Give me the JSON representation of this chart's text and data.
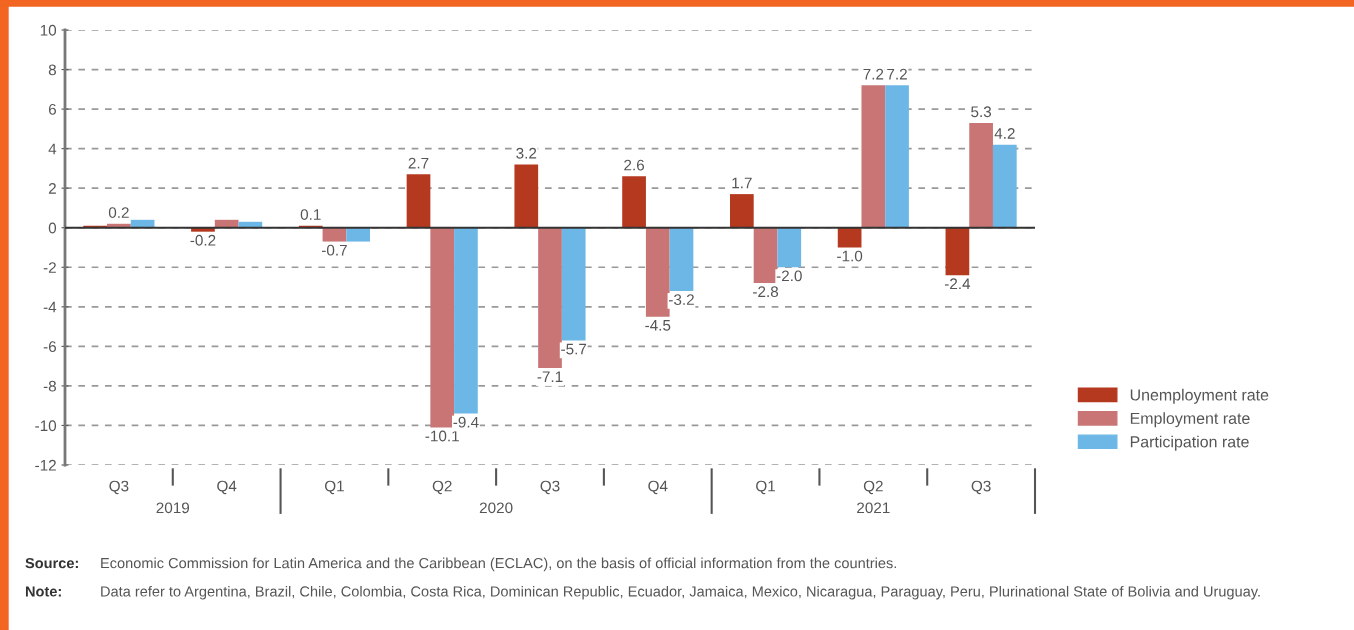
{
  "chart_data": {
    "type": "bar",
    "categories": [
      "Q3",
      "Q4",
      "Q1",
      "Q2",
      "Q3",
      "Q4",
      "Q1",
      "Q2",
      "Q3"
    ],
    "series": [
      {
        "name": "Unemployment rate",
        "color": "#b5391f",
        "values": [
          0.1,
          -0.2,
          0.1,
          2.7,
          3.2,
          2.6,
          1.7,
          -1.0,
          -2.4
        ],
        "value_labels": [
          null,
          "-0.2",
          "0.1",
          "2.7",
          "3.2",
          "2.6",
          "1.7",
          "-1.0",
          "-2.4"
        ]
      },
      {
        "name": "Employment rate",
        "color": "#c97575",
        "values": [
          0.2,
          0.4,
          -0.7,
          -10.1,
          -7.1,
          -4.5,
          -2.8,
          7.2,
          5.3
        ],
        "value_labels": [
          "0.2",
          null,
          "-0.7",
          "-10.1",
          "-7.1",
          "-4.5",
          "-2.8",
          "7.2",
          "5.3"
        ]
      },
      {
        "name": "Participation rate",
        "color": "#6db7e6",
        "values": [
          0.4,
          0.3,
          -0.7,
          -9.4,
          -5.7,
          -3.2,
          -2.0,
          7.2,
          4.2
        ],
        "value_labels": [
          null,
          null,
          null,
          "-9.4",
          "-5.7",
          "-3.2",
          "-2.0",
          "7.2",
          "4.2"
        ]
      }
    ],
    "ylim": [
      -12,
      10
    ],
    "yticks": [
      -12,
      -10,
      -8,
      -6,
      -4,
      -2,
      0,
      2,
      4,
      6,
      8,
      10
    ],
    "grid": "y",
    "legend": "bottom right",
    "annotations": [
      "2019",
      "2020",
      "2021",
      "Source: Economic Commission for Latin America and the Caribbean (ECLAC), on the basis of official information from the countries.",
      "Note: Data refer to Argentina, Brazil, Chile, Colombia, Costa Rica, Dominican Republic, Ecuador, Jamaica, Mexico, Nicaragua, Paraguay, Peru, Plurinational State of Bolivia and Uruguay."
    ]
  }
}
